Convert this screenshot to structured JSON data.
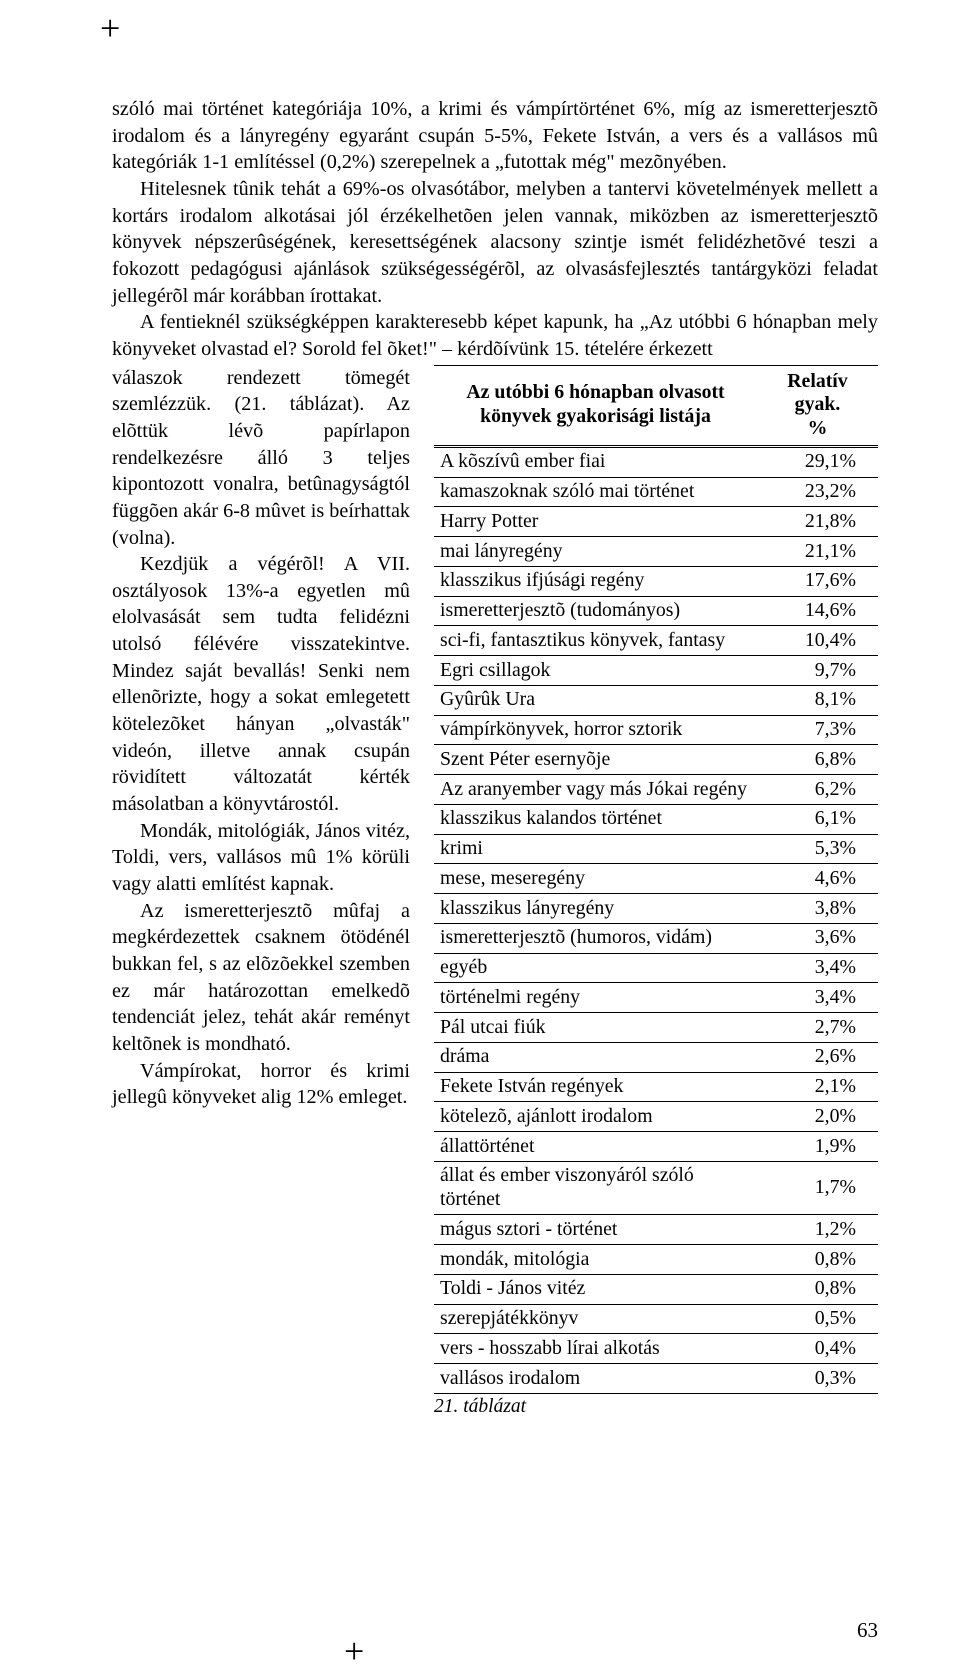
{
  "intro_para": "szóló mai történet kategóriája 10%, a krimi és vámpírtörténet 6%, míg az ismeretterjesztõ irodalom és a lányregény egyaránt csupán 5-5%, Fekete István, a vers és a vallásos mû kategóriák 1-1 említéssel (0,2%) szerepelnek a „futottak még\" mezõnyében.",
  "para2_first": "Hitelesnek tûnik tehát a 69%-os olvasótábor, melyben a tantervi követelmények mellett a kortárs irodalom alkotásai jól érzékelhetõen jelen vannak, miközben az ismeretterjesztõ könyvek népszerûségének, keresettségének alacsony szintje ismét felidézhetõvé teszi a fokozott pedagógusi ajánlások szükségességérõl, az olvasásfejlesztés tantárgyközi feladat jellegérõl már korábban írottakat.",
  "para3": "A fentieknél szükségképpen karakteresebb képet kapunk, ha „Az utóbbi 6 hónapban mely könyveket olvastad el? Sorold fel õket!\" – kérdõívünk 15. tételére érkezett",
  "left_block1": "válaszok rendezett tömegét szemlézzük. (21. táblázat). Az elõttük lévõ papírlapon rendelkezésre álló 3 teljes kipontozott vonalra, betûnagyságtól függõen akár 6-8 mûvet is beírhattak (volna).",
  "left_block2": "Kezdjük a végérõl! A VII. osztályosok 13%-a egyetlen mû elolvasását sem tudta felidézni utolsó félévére visszatekintve. Mindez saját bevallás! Senki nem ellenõrizte, hogy a sokat emlegetett kötelezõket hányan „olvasták\" videón, illetve annak csupán rövidített változatát kérték másolatban a könyvtárostól.",
  "left_block3": "Mondák, mitológiák, János vitéz, Toldi, vers, vallásos mû 1% körüli vagy alatti említést kapnak.",
  "left_block4": "Az ismeretterjesztõ mûfaj a megkérdezettek csaknem ötödénél bukkan fel, s az elõzõekkel szemben ez már határozottan emelkedõ tendenciát jelez, tehát akár reményt keltõnek is mondható.",
  "left_block5": "Vámpírokat, horror és krimi jellegû könyveket alig 12% emleget.",
  "table": {
    "header_title_line1": "Az utóbbi 6 hónapban olvasott",
    "header_title_line2": "könyvek gyakorisági listája",
    "header_val_line1": "Relatív gyak.",
    "header_val_line2": "%",
    "rows": [
      {
        "name": "A kõszívû ember fiai",
        "val": "29,1%"
      },
      {
        "name": "kamaszoknak szóló mai történet",
        "val": "23,2%"
      },
      {
        "name": "Harry Potter",
        "val": "21,8%"
      },
      {
        "name": "mai lányregény",
        "val": "21,1%"
      },
      {
        "name": "klasszikus ifjúsági regény",
        "val": "17,6%"
      },
      {
        "name": "ismeretterjesztõ (tudományos)",
        "val": "14,6%"
      },
      {
        "name": "sci-fi, fantasztikus könyvek, fantasy",
        "val": "10,4%"
      },
      {
        "name": "Egri csillagok",
        "val": "9,7%"
      },
      {
        "name": "Gyûrûk Ura",
        "val": "8,1%"
      },
      {
        "name": "vámpírkönyvek, horror sztorik",
        "val": "7,3%"
      },
      {
        "name": "Szent Péter esernyõje",
        "val": "6,8%"
      },
      {
        "name": "Az aranyember vagy más Jókai regény",
        "val": "6,2%"
      },
      {
        "name": "klasszikus kalandos történet",
        "val": "6,1%"
      },
      {
        "name": "krimi",
        "val": "5,3%"
      },
      {
        "name": "mese, meseregény",
        "val": "4,6%"
      },
      {
        "name": "klasszikus lányregény",
        "val": "3,8%"
      },
      {
        "name": "ismeretterjesztõ (humoros, vidám)",
        "val": "3,6%"
      },
      {
        "name": "egyéb",
        "val": "3,4%"
      },
      {
        "name": "történelmi regény",
        "val": "3,4%"
      },
      {
        "name": "Pál utcai fiúk",
        "val": "2,7%"
      },
      {
        "name": "dráma",
        "val": "2,6%"
      },
      {
        "name": "Fekete István regények",
        "val": "2,1%"
      },
      {
        "name": "kötelezõ, ajánlott irodalom",
        "val": "2,0%"
      },
      {
        "name": "állattörténet",
        "val": "1,9%"
      },
      {
        "name": "állat és ember viszonyáról szóló történet",
        "val": "1,7%"
      },
      {
        "name": "mágus sztori - történet",
        "val": "1,2%"
      },
      {
        "name": "mondák, mitológia",
        "val": "0,8%"
      },
      {
        "name": "Toldi - János vitéz",
        "val": "0,8%"
      },
      {
        "name": "szerepjátékkönyv",
        "val": "0,5%"
      },
      {
        "name": "vers - hosszabb lírai alkotás",
        "val": "0,4%"
      },
      {
        "name": "vallásos irodalom",
        "val": "0,3%"
      }
    ],
    "caption": "21. táblázat"
  },
  "page_number": "63"
}
